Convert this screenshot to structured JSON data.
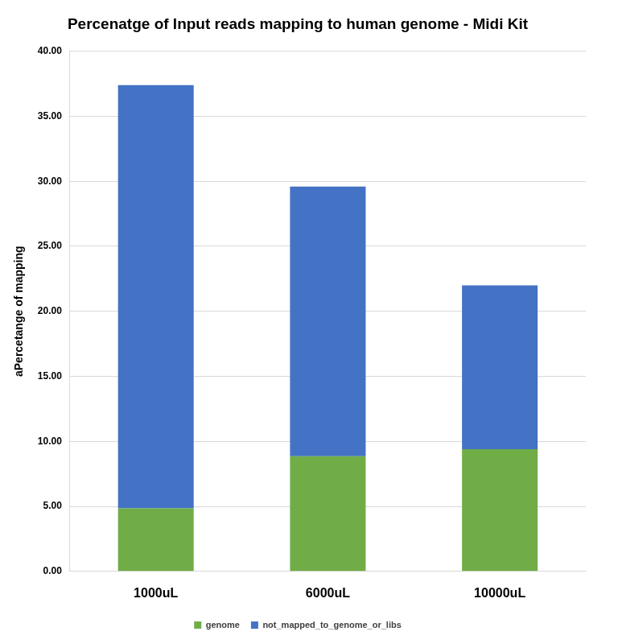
{
  "chart_data": {
    "type": "bar",
    "stacked": true,
    "title": "Percenatge of Input reads mapping to human genome - Midi Kit",
    "y_label": "aPercetange of mapping",
    "categories": [
      "1000uL",
      "6000uL",
      "10000uL"
    ],
    "series": [
      {
        "name": "genome",
        "color": "#70ad47",
        "values": [
          4.85,
          8.85,
          9.4
        ]
      },
      {
        "name": "not_mapped_to_genome_or_libs",
        "color": "#4472c4",
        "values": [
          32.55,
          20.75,
          12.6
        ]
      }
    ],
    "ylim": [
      0,
      40
    ],
    "yticks": [
      {
        "value": 0,
        "label": "0.00"
      },
      {
        "value": 5,
        "label": "5.00"
      },
      {
        "value": 10,
        "label": "10.00"
      },
      {
        "value": 15,
        "label": "15.00"
      },
      {
        "value": 20,
        "label": "20.00"
      },
      {
        "value": 25,
        "label": "25.00"
      },
      {
        "value": 30,
        "label": "30.00"
      },
      {
        "value": 35,
        "label": "35.00"
      },
      {
        "value": 40,
        "label": "40.00"
      }
    ],
    "grid": true,
    "legend": "bottom"
  }
}
